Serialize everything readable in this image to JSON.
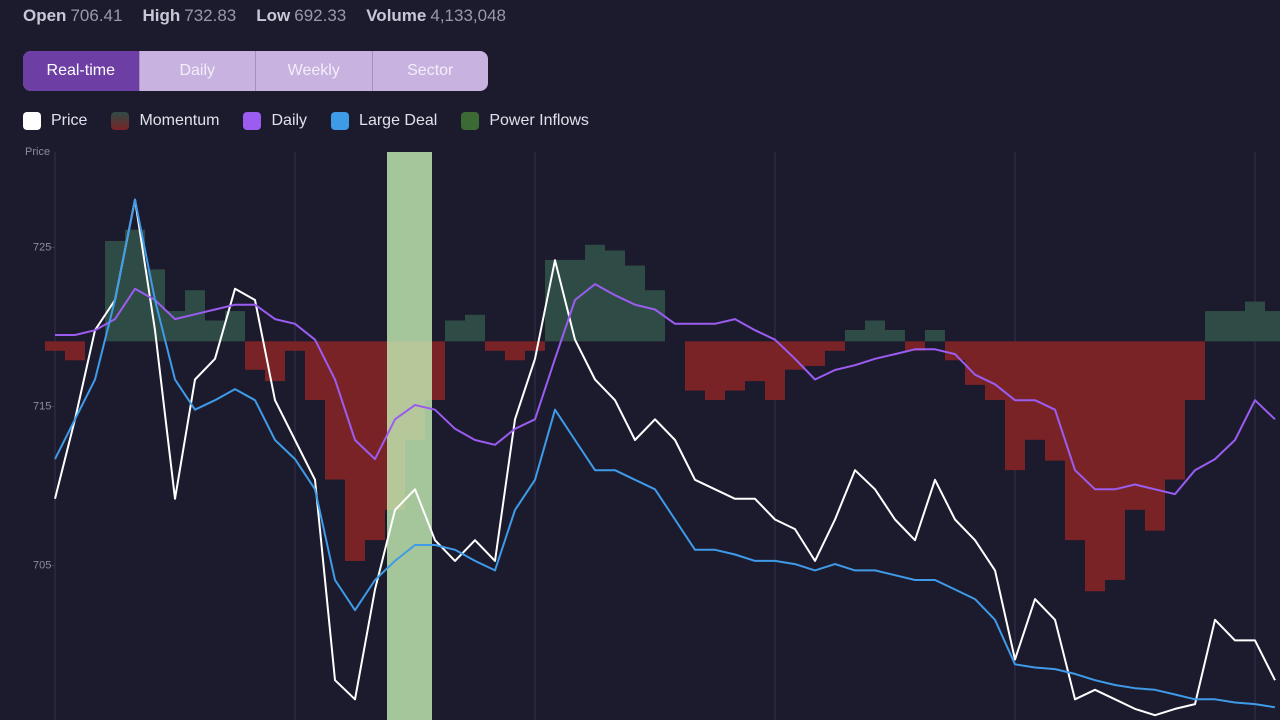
{
  "stats": [
    {
      "label": "Open",
      "value": "706.41"
    },
    {
      "label": "High",
      "value": "732.83"
    },
    {
      "label": "Low",
      "value": "692.33"
    },
    {
      "label": "Volume",
      "value": "4,133,048"
    }
  ],
  "tabs": {
    "items": [
      "Real-time",
      "Daily",
      "Weekly",
      "Sector"
    ],
    "active": 0
  },
  "chart_data": {
    "type": "line",
    "y_label": "Price",
    "ylim": [
      695.3,
      731.0
    ],
    "yticks": [
      705,
      715,
      725
    ],
    "y2lim": [
      -20,
      10
    ],
    "xlim": [
      0,
      61
    ],
    "series": [
      {
        "name": "Price",
        "color": "#ffffff",
        "values": [
          709.2,
          714.2,
          719.8,
          721.7,
          728.0,
          719.8,
          709.2,
          716.7,
          718.0,
          722.4,
          721.7,
          715.4,
          712.9,
          710.4,
          697.8,
          696.6,
          703.5,
          708.5,
          709.8,
          706.6,
          705.3,
          706.6,
          705.3,
          714.2,
          718.0,
          724.2,
          719.2,
          716.7,
          715.4,
          712.9,
          714.2,
          712.9,
          710.4,
          709.8,
          709.2,
          709.2,
          707.9,
          707.3,
          705.3,
          707.9,
          711.0,
          709.8,
          707.9,
          706.6,
          710.4,
          707.9,
          706.6,
          704.7,
          699.1,
          702.9,
          701.6,
          696.6,
          697.2,
          696.6,
          696.0,
          695.6,
          696.0,
          696.3,
          701.6,
          700.3,
          700.3,
          697.8
        ]
      },
      {
        "name": "Momentum",
        "type": "bar",
        "axis": "y2",
        "color": "#7a2327",
        "positive_color": "#2f4b45",
        "values": [
          -0.5,
          -1.0,
          0,
          5.3,
          5.9,
          3.8,
          1.6,
          2.7,
          1.1,
          1.6,
          -1.5,
          -2.1,
          -0.5,
          -3.1,
          -7.3,
          -11.6,
          -10.5,
          -8.9,
          -5.2,
          -3.1,
          1.1,
          1.4,
          -0.5,
          -1.0,
          -0.5,
          4.3,
          4.3,
          5.1,
          4.8,
          4.0,
          2.7,
          0,
          -2.6,
          -3.1,
          -2.6,
          -2.1,
          -3.1,
          -1.5,
          -1.3,
          -0.5,
          0.6,
          1.1,
          0.6,
          -0.5,
          0.6,
          -1.0,
          -2.3,
          -3.1,
          -6.8,
          -5.2,
          -6.3,
          -10.5,
          -13.2,
          -12.6,
          -8.9,
          -10.0,
          -7.3,
          -3.1,
          1.6,
          1.6,
          2.1,
          1.6
        ]
      },
      {
        "name": "Daily",
        "color": "#9b5cf0",
        "values": [
          719.5,
          719.5,
          719.8,
          720.5,
          722.4,
          721.7,
          720.5,
          720.8,
          721.1,
          721.4,
          721.4,
          720.5,
          720.2,
          719.2,
          716.7,
          712.9,
          711.7,
          714.2,
          715.1,
          714.8,
          713.6,
          712.9,
          712.6,
          713.6,
          714.2,
          718.0,
          721.7,
          722.7,
          722.0,
          721.4,
          721.1,
          720.2,
          720.2,
          720.2,
          720.5,
          719.8,
          719.2,
          718.0,
          716.7,
          717.3,
          717.6,
          718.0,
          718.3,
          718.6,
          718.6,
          718.3,
          717.0,
          716.4,
          715.4,
          715.4,
          714.8,
          711.0,
          709.8,
          709.8,
          710.1,
          709.8,
          709.5,
          711.0,
          711.7,
          712.9,
          715.4,
          714.2
        ]
      },
      {
        "name": "Large Deal",
        "color": "#3f9be8",
        "values": [
          711.7,
          714.2,
          716.7,
          721.7,
          728.0,
          721.7,
          716.7,
          714.8,
          715.4,
          716.1,
          715.4,
          712.9,
          711.7,
          709.8,
          704.1,
          702.2,
          704.1,
          705.3,
          706.3,
          706.3,
          706.0,
          705.3,
          704.7,
          708.5,
          710.4,
          714.8,
          712.9,
          711.0,
          711.0,
          710.4,
          709.8,
          707.9,
          706.0,
          706.0,
          705.7,
          705.3,
          705.3,
          705.1,
          704.7,
          705.1,
          704.7,
          704.7,
          704.4,
          704.1,
          704.1,
          703.5,
          702.9,
          701.6,
          698.8,
          698.6,
          698.5,
          698.2,
          697.8,
          697.5,
          697.3,
          697.2,
          696.9,
          696.6,
          696.6,
          696.4,
          696.3,
          696.1
        ]
      },
      {
        "name": "Power Inflows",
        "type": "band",
        "color": "#3b6a35",
        "band_color": "#c3ecb3",
        "x_range": [
          16.6,
          18.85
        ]
      }
    ]
  }
}
